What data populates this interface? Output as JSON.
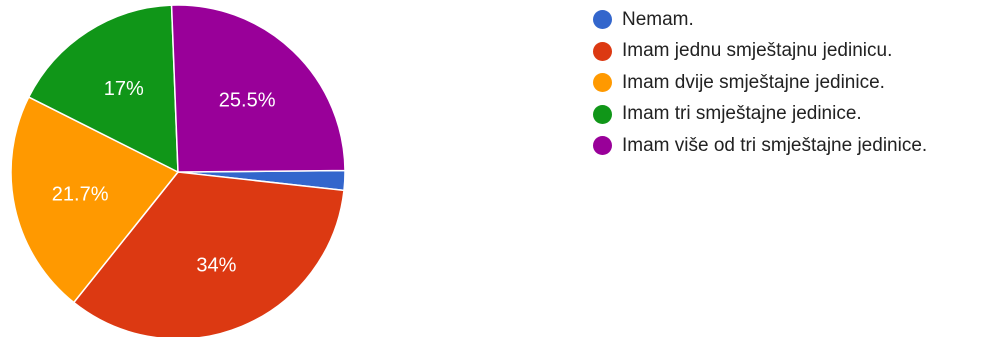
{
  "chart_data": {
    "type": "pie",
    "title": "",
    "categories": [
      "Nemam.",
      "Imam jednu smještajnu jedinicu.",
      "Imam dvije smještajne jedinice.",
      "Imam tri smještajne jedinice.",
      "Imam više od tri smještajne jedinice."
    ],
    "values": [
      1.9,
      34,
      21.7,
      17,
      25.5
    ],
    "data_labels": [
      "",
      "34%",
      "21.7%",
      "17%",
      "25.5%"
    ],
    "colors": [
      "#3366cc",
      "#dc3912",
      "#ff9900",
      "#109618",
      "#990099"
    ],
    "start_angle_deg": 90,
    "direction": "clockwise",
    "legend_position": "right"
  }
}
